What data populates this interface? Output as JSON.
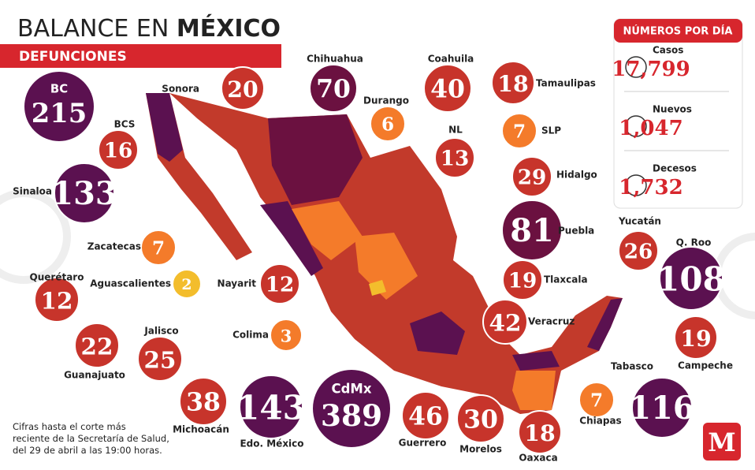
{
  "header": {
    "title_light": "BALANCE EN",
    "title_bold": "MÉXICO",
    "subtitle": "DEFUNCIONES"
  },
  "states": [
    {
      "name": "BC",
      "value": 215,
      "color": "#5b1150"
    },
    {
      "name": "Sonora",
      "value": 20,
      "color": "#c7342b"
    },
    {
      "name": "Chihuahua",
      "value": 70,
      "color": "#6b1140"
    },
    {
      "name": "Coahuila",
      "value": 40,
      "color": "#c7342b"
    },
    {
      "name": "Tamaulipas",
      "value": 18,
      "color": "#c7342b"
    },
    {
      "name": "Durango",
      "value": 6,
      "color": "#f47b2a"
    },
    {
      "name": "BCS",
      "value": 16,
      "color": "#c7342b"
    },
    {
      "name": "NL",
      "value": 13,
      "color": "#c7342b"
    },
    {
      "name": "SLP",
      "value": 7,
      "color": "#f47b2a"
    },
    {
      "name": "Sinaloa",
      "value": 133,
      "color": "#5b1150"
    },
    {
      "name": "Hidalgo",
      "value": 29,
      "color": "#c7342b"
    },
    {
      "name": "Puebla",
      "value": 81,
      "color": "#6b1140"
    },
    {
      "name": "Zacatecas",
      "value": 7,
      "color": "#f47b2a"
    },
    {
      "name": "Aguascalientes",
      "value": 2,
      "color": "#f3bd2c"
    },
    {
      "name": "Nayarit",
      "value": 12,
      "color": "#c7342b"
    },
    {
      "name": "Querétaro",
      "value": 12,
      "color": "#c7342b"
    },
    {
      "name": "Tlaxcala",
      "value": 19,
      "color": "#c7342b"
    },
    {
      "name": "Yucatán",
      "value": 26,
      "color": "#c7342b"
    },
    {
      "name": "Q. Roo",
      "value": 108,
      "color": "#5b1150"
    },
    {
      "name": "Veracruz",
      "value": 42,
      "color": "#c7342b"
    },
    {
      "name": "Colima",
      "value": 3,
      "color": "#f47b2a"
    },
    {
      "name": "Jalisco",
      "value": 25,
      "color": "#c7342b"
    },
    {
      "name": "Guanajuato",
      "value": 22,
      "color": "#c7342b"
    },
    {
      "name": "Campeche",
      "value": 19,
      "color": "#c7342b"
    },
    {
      "name": "Michoacán",
      "value": 38,
      "color": "#c7342b"
    },
    {
      "name": "Edo. México",
      "value": 143,
      "color": "#5b1150"
    },
    {
      "name": "CdMx",
      "value": 389,
      "color": "#5b1150"
    },
    {
      "name": "Guerrero",
      "value": 46,
      "color": "#c7342b"
    },
    {
      "name": "Morelos",
      "value": 30,
      "color": "#c7342b"
    },
    {
      "name": "Oaxaca",
      "value": 18,
      "color": "#c7342b"
    },
    {
      "name": "Chiapas",
      "value": 7,
      "color": "#f47b2a"
    },
    {
      "name": "Tabasco",
      "value": 116,
      "color": "#5b1150"
    }
  ],
  "panel": {
    "title": "NÚMEROS POR DÍA",
    "items": [
      {
        "label": "Casos",
        "value": "17,799"
      },
      {
        "label": "Nuevos",
        "value": "1,047"
      },
      {
        "label": "Decesos",
        "value": "1,732"
      }
    ]
  },
  "footnote": [
    "Cifras hasta el corte más",
    "reciente de la Secretaría de Salud,",
    "del 29 de abril a las 19:00 horas."
  ],
  "logo": "M"
}
